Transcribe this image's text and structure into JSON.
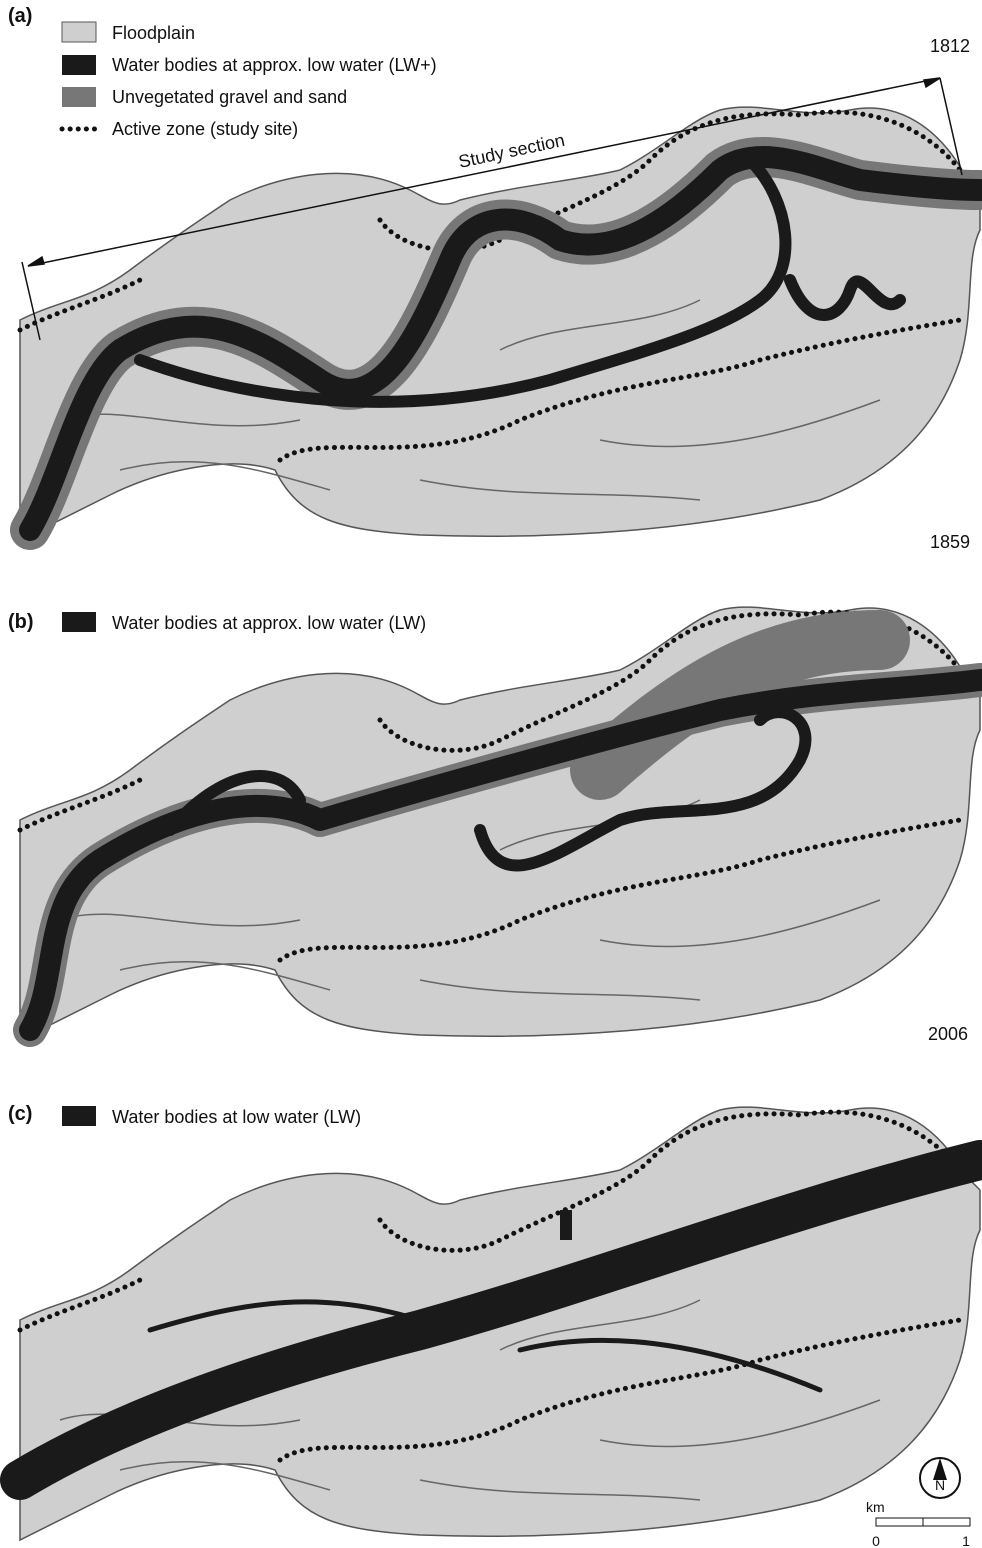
{
  "panels": [
    {
      "label": "(a)",
      "year": "1812",
      "year_after": "1859",
      "legend": [
        "Floodplain",
        "Water bodies at approx. low water (LW+)",
        "Unvegetated gravel and sand",
        "Active zone (study site)"
      ],
      "annotation": "Study section"
    },
    {
      "label": "(b)",
      "legend": [
        "Water bodies at approx. low water (LW)"
      ],
      "year_after": "2006"
    },
    {
      "label": "(c)",
      "legend": [
        "Water bodies at low water (LW)"
      ]
    }
  ],
  "north_arrow": "N",
  "scale_bar": {
    "unit": "km",
    "ticks": [
      "0",
      "1"
    ]
  }
}
